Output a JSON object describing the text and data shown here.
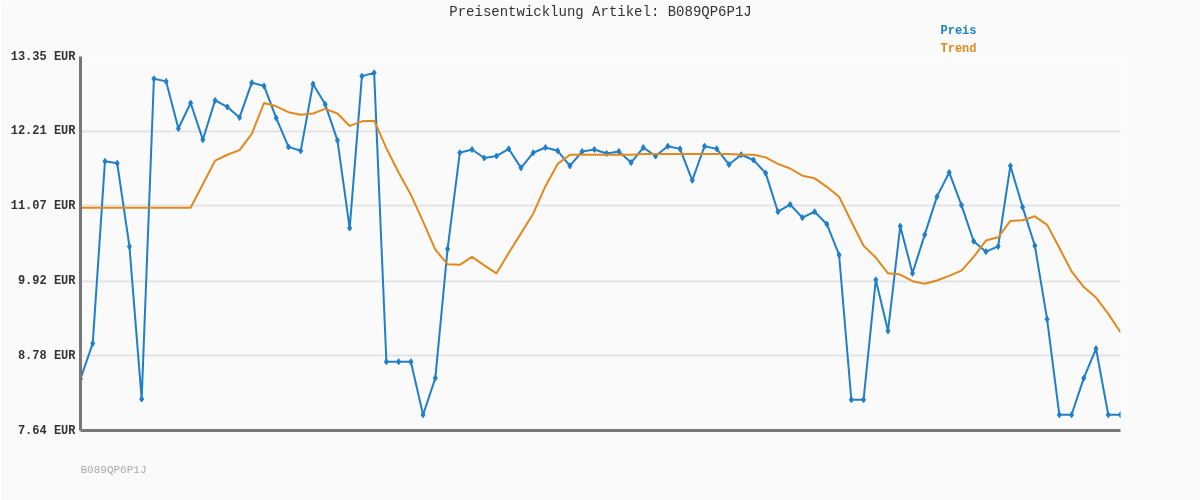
{
  "chart_data": {
    "type": "line",
    "title": "Preisentwicklung Artikel: B089QP6P1J",
    "categories": [
      null,
      null,
      null,
      null,
      null,
      null,
      null,
      null,
      null,
      null,
      null,
      null,
      null,
      null,
      null,
      null,
      null,
      null,
      null,
      null,
      null,
      null,
      null,
      null,
      null,
      null,
      null,
      null,
      null,
      null,
      null,
      null,
      null,
      null,
      null,
      null,
      null,
      null,
      null,
      null,
      null,
      null,
      null,
      null,
      null,
      null,
      null,
      null,
      null,
      null,
      null,
      null,
      null,
      null,
      null,
      null,
      null,
      null,
      null,
      null,
      null,
      null,
      null,
      null,
      null,
      null,
      null,
      null,
      null,
      null,
      null,
      null,
      null,
      null,
      null,
      null,
      null,
      null,
      null,
      null,
      null,
      null,
      null,
      null,
      null,
      null
    ],
    "series": [
      {
        "name": "Preis",
        "color": "#1f7fc8",
        "marker": "diamond",
        "values": [
          8.43,
          8.97,
          11.75,
          11.72,
          10.45,
          8.12,
          13.01,
          12.97,
          12.25,
          12.64,
          12.08,
          12.68,
          12.58,
          12.42,
          12.95,
          12.9,
          12.41,
          11.97,
          11.91,
          12.93,
          12.62,
          12.07,
          10.73,
          13.05,
          13.1,
          8.69,
          8.69,
          8.69,
          7.88,
          8.44,
          10.41,
          11.88,
          11.93,
          11.8,
          11.83,
          11.94,
          11.65,
          11.88,
          11.96,
          11.91,
          11.68,
          11.9,
          11.93,
          11.87,
          11.9,
          11.73,
          11.96,
          11.83,
          11.98,
          11.94,
          11.46,
          11.98,
          11.94,
          11.7,
          11.85,
          11.77,
          11.57,
          10.98,
          11.09,
          10.89,
          10.98,
          10.79,
          10.32,
          8.11,
          8.11,
          9.94,
          9.16,
          10.76,
          10.04,
          10.63,
          11.21,
          11.58,
          11.08,
          10.53,
          10.37,
          10.45,
          11.68,
          11.05,
          10.46,
          9.34,
          7.88,
          7.88,
          8.44,
          8.89,
          7.88,
          7.88
        ]
      },
      {
        "name": "Trend",
        "color": "#e08a1e",
        "marker": "none",
        "values": [
          11.04,
          11.04,
          11.04,
          11.04,
          11.04,
          11.04,
          11.04,
          11.04,
          11.04,
          11.04,
          11.4,
          11.76,
          11.85,
          11.92,
          12.17,
          12.64,
          12.59,
          12.5,
          12.46,
          12.48,
          12.55,
          12.48,
          12.29,
          12.36,
          12.37,
          11.95,
          11.58,
          11.24,
          10.83,
          10.4,
          10.18,
          10.17,
          10.29,
          10.16,
          10.04,
          10.35,
          10.65,
          10.95,
          11.37,
          11.71,
          11.85,
          11.85,
          11.85,
          11.85,
          11.85,
          11.85,
          11.86,
          11.86,
          11.86,
          11.86,
          11.86,
          11.86,
          11.86,
          11.86,
          11.85,
          11.85,
          11.81,
          11.71,
          11.64,
          11.53,
          11.49,
          11.36,
          11.21,
          10.83,
          10.46,
          10.28,
          10.04,
          10.02,
          9.92,
          9.88,
          9.93,
          10.0,
          10.08,
          10.29,
          10.54,
          10.59,
          10.84,
          10.85,
          10.91,
          10.78,
          10.43,
          10.07,
          9.83,
          9.67,
          9.42,
          9.14
        ]
      }
    ],
    "ylim": [
      7.64,
      13.35
    ],
    "yticks": [
      {
        "value": 7.64,
        "label": "7.64 EUR"
      },
      {
        "value": 8.78,
        "label": "8.78 EUR"
      },
      {
        "value": 9.92,
        "label": "9.92 EUR"
      },
      {
        "value": 11.07,
        "label": "11.07 EUR"
      },
      {
        "value": 12.21,
        "label": "12.21 EUR"
      },
      {
        "value": 13.35,
        "label": "13.35 EUR"
      }
    ],
    "tick_labels": "y",
    "grid": "y",
    "annotations": [
      "B089QP6P1J"
    ]
  }
}
